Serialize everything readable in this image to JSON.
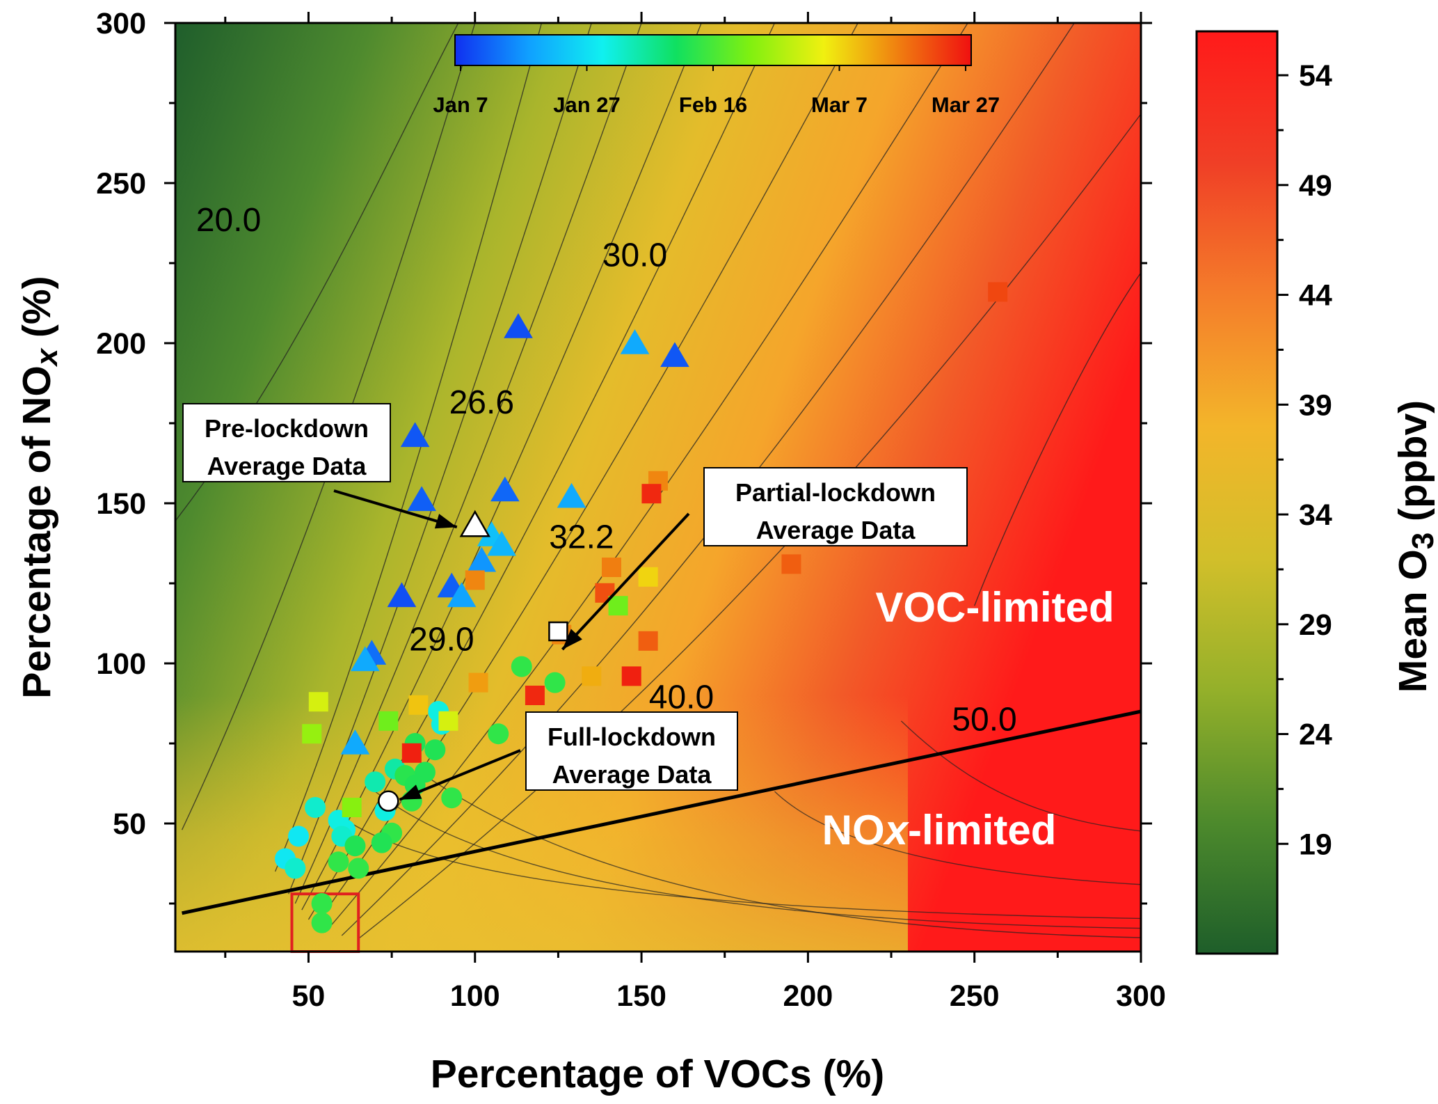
{
  "chart_data": {
    "type": "contour-scatter",
    "title": "",
    "xlabel": "Percentage of VOCs (%)",
    "ylabel_parts": [
      "Percentage of NO",
      "x",
      " (%)"
    ],
    "xlim": [
      10,
      300
    ],
    "ylim": [
      10,
      300
    ],
    "x_ticks": [
      50,
      100,
      150,
      200,
      250,
      300
    ],
    "y_ticks": [
      50,
      100,
      150,
      200,
      250,
      300
    ],
    "colorbar": {
      "label_parts": [
        "Mean O",
        "3",
        " (ppbv)"
      ],
      "range": [
        14,
        56
      ],
      "ticks": [
        19,
        24,
        29,
        34,
        39,
        44,
        49,
        54
      ],
      "colors": [
        "#1e5e2a",
        "#4d8a2c",
        "#94b02a",
        "#d2bf2a",
        "#f3b52a",
        "#f47d2a",
        "#f03f26",
        "#ff1a1a"
      ]
    },
    "time_colorbar": {
      "labels": [
        "Jan 7",
        "Jan 27",
        "Feb 16",
        "Mar 7",
        "Mar 27"
      ],
      "colors": [
        "#1030f0",
        "#10a0ff",
        "#10f0f0",
        "#10e060",
        "#80f010",
        "#f0f010",
        "#f08010",
        "#f01010"
      ]
    },
    "contour_labels": [
      {
        "text": "20.0",
        "x": 26,
        "y": 235
      },
      {
        "text": "26.6",
        "x": 102,
        "y": 178
      },
      {
        "text": "30.0",
        "x": 148,
        "y": 224
      },
      {
        "text": "32.2",
        "x": 132,
        "y": 136
      },
      {
        "text": "29.0",
        "x": 90,
        "y": 104
      },
      {
        "text": "40.0",
        "x": 162,
        "y": 86
      },
      {
        "text": "50.0",
        "x": 253,
        "y": 79
      }
    ],
    "ridge_line": {
      "x": [
        12,
        300
      ],
      "y": [
        22,
        85
      ]
    },
    "series": [
      {
        "name": "Pre-lockdown",
        "marker": "triangle",
        "points": [
          {
            "x": 113,
            "y": 205,
            "c": 0.04
          },
          {
            "x": 160,
            "y": 196,
            "c": 0.05
          },
          {
            "x": 148,
            "y": 200,
            "c": 0.16
          },
          {
            "x": 82,
            "y": 171,
            "c": 0.05
          },
          {
            "x": 84,
            "y": 151,
            "c": 0.06
          },
          {
            "x": 109,
            "y": 154,
            "c": 0.07
          },
          {
            "x": 129,
            "y": 152,
            "c": 0.16
          },
          {
            "x": 105,
            "y": 140,
            "c": 0.2
          },
          {
            "x": 108,
            "y": 137,
            "c": 0.18
          },
          {
            "x": 102,
            "y": 132,
            "c": 0.13
          },
          {
            "x": 93,
            "y": 124,
            "c": 0.06
          },
          {
            "x": 96,
            "y": 121,
            "c": 0.15
          },
          {
            "x": 78,
            "y": 121,
            "c": 0.04
          },
          {
            "x": 69,
            "y": 103,
            "c": 0.08
          },
          {
            "x": 67,
            "y": 101,
            "c": 0.16
          },
          {
            "x": 64,
            "y": 75,
            "c": 0.16
          }
        ]
      },
      {
        "name": "Full-lockdown",
        "marker": "circle",
        "points": [
          {
            "x": 114,
            "y": 99,
            "c": 0.47
          },
          {
            "x": 124,
            "y": 94,
            "c": 0.47
          },
          {
            "x": 89,
            "y": 85,
            "c": 0.3
          },
          {
            "x": 90,
            "y": 81,
            "c": 0.3
          },
          {
            "x": 107,
            "y": 78,
            "c": 0.47
          },
          {
            "x": 82,
            "y": 75,
            "c": 0.45
          },
          {
            "x": 88,
            "y": 73,
            "c": 0.45
          },
          {
            "x": 76,
            "y": 67,
            "c": 0.36
          },
          {
            "x": 79,
            "y": 65,
            "c": 0.46
          },
          {
            "x": 85,
            "y": 66,
            "c": 0.45
          },
          {
            "x": 70,
            "y": 63,
            "c": 0.35
          },
          {
            "x": 82,
            "y": 62,
            "c": 0.45
          },
          {
            "x": 93,
            "y": 58,
            "c": 0.47
          },
          {
            "x": 81,
            "y": 57,
            "c": 0.47
          },
          {
            "x": 52,
            "y": 55,
            "c": 0.32
          },
          {
            "x": 73,
            "y": 54,
            "c": 0.3
          },
          {
            "x": 59,
            "y": 51,
            "c": 0.3
          },
          {
            "x": 61,
            "y": 48,
            "c": 0.3
          },
          {
            "x": 75,
            "y": 47,
            "c": 0.47
          },
          {
            "x": 47,
            "y": 46,
            "c": 0.27
          },
          {
            "x": 60,
            "y": 46,
            "c": 0.32
          },
          {
            "x": 72,
            "y": 44,
            "c": 0.45
          },
          {
            "x": 64,
            "y": 43,
            "c": 0.45
          },
          {
            "x": 43,
            "y": 39,
            "c": 0.27
          },
          {
            "x": 59,
            "y": 38,
            "c": 0.47
          },
          {
            "x": 65,
            "y": 36,
            "c": 0.47
          },
          {
            "x": 46,
            "y": 36,
            "c": 0.32
          },
          {
            "x": 54,
            "y": 25,
            "c": 0.47
          },
          {
            "x": 54,
            "y": 19,
            "c": 0.47
          }
        ]
      },
      {
        "name": "Partial-lockdown",
        "marker": "square",
        "points": [
          {
            "x": 257,
            "y": 216,
            "c": 0.93
          },
          {
            "x": 155,
            "y": 157,
            "c": 0.85
          },
          {
            "x": 153,
            "y": 153,
            "c": 0.97
          },
          {
            "x": 195,
            "y": 131,
            "c": 0.9
          },
          {
            "x": 141,
            "y": 130,
            "c": 0.86
          },
          {
            "x": 152,
            "y": 127,
            "c": 0.75
          },
          {
            "x": 100,
            "y": 126,
            "c": 0.85
          },
          {
            "x": 139,
            "y": 122,
            "c": 0.92
          },
          {
            "x": 143,
            "y": 118,
            "c": 0.55
          },
          {
            "x": 126,
            "y": 109,
            "c": 0.85
          },
          {
            "x": 152,
            "y": 107,
            "c": 0.9
          },
          {
            "x": 135,
            "y": 96,
            "c": 0.8
          },
          {
            "x": 147,
            "y": 96,
            "c": 0.98
          },
          {
            "x": 101,
            "y": 94,
            "c": 0.82
          },
          {
            "x": 118,
            "y": 90,
            "c": 0.97
          },
          {
            "x": 53,
            "y": 88,
            "c": 0.68
          },
          {
            "x": 83,
            "y": 87,
            "c": 0.77
          },
          {
            "x": 92,
            "y": 82,
            "c": 0.68
          },
          {
            "x": 74,
            "y": 82,
            "c": 0.55
          },
          {
            "x": 51,
            "y": 78,
            "c": 0.6
          },
          {
            "x": 81,
            "y": 72,
            "c": 0.98
          },
          {
            "x": 63,
            "y": 55,
            "c": 0.58
          }
        ]
      }
    ],
    "average_points": [
      {
        "label": "Pre-lockdown Average Data",
        "marker": "triangle",
        "x": 100,
        "y": 143
      },
      {
        "label": "Partial-lockdown Average Data",
        "marker": "square",
        "x": 125,
        "y": 110
      },
      {
        "label": "Full-lockdown Average Data",
        "marker": "circle",
        "x": 74,
        "y": 57
      }
    ],
    "annotations": [
      {
        "lines": [
          "Pre-lockdown",
          "Average Data"
        ]
      },
      {
        "lines": [
          "Partial-lockdown",
          "Average Data"
        ]
      },
      {
        "lines": [
          "Full-lockdown",
          "Average Data"
        ]
      }
    ],
    "regions": {
      "voc": "VOC-limited",
      "nox_parts": [
        "NO",
        "x",
        "-limited"
      ]
    },
    "highlight_box": {
      "x": [
        45,
        65
      ],
      "y": [
        10,
        28
      ],
      "color": "#e02020"
    }
  }
}
